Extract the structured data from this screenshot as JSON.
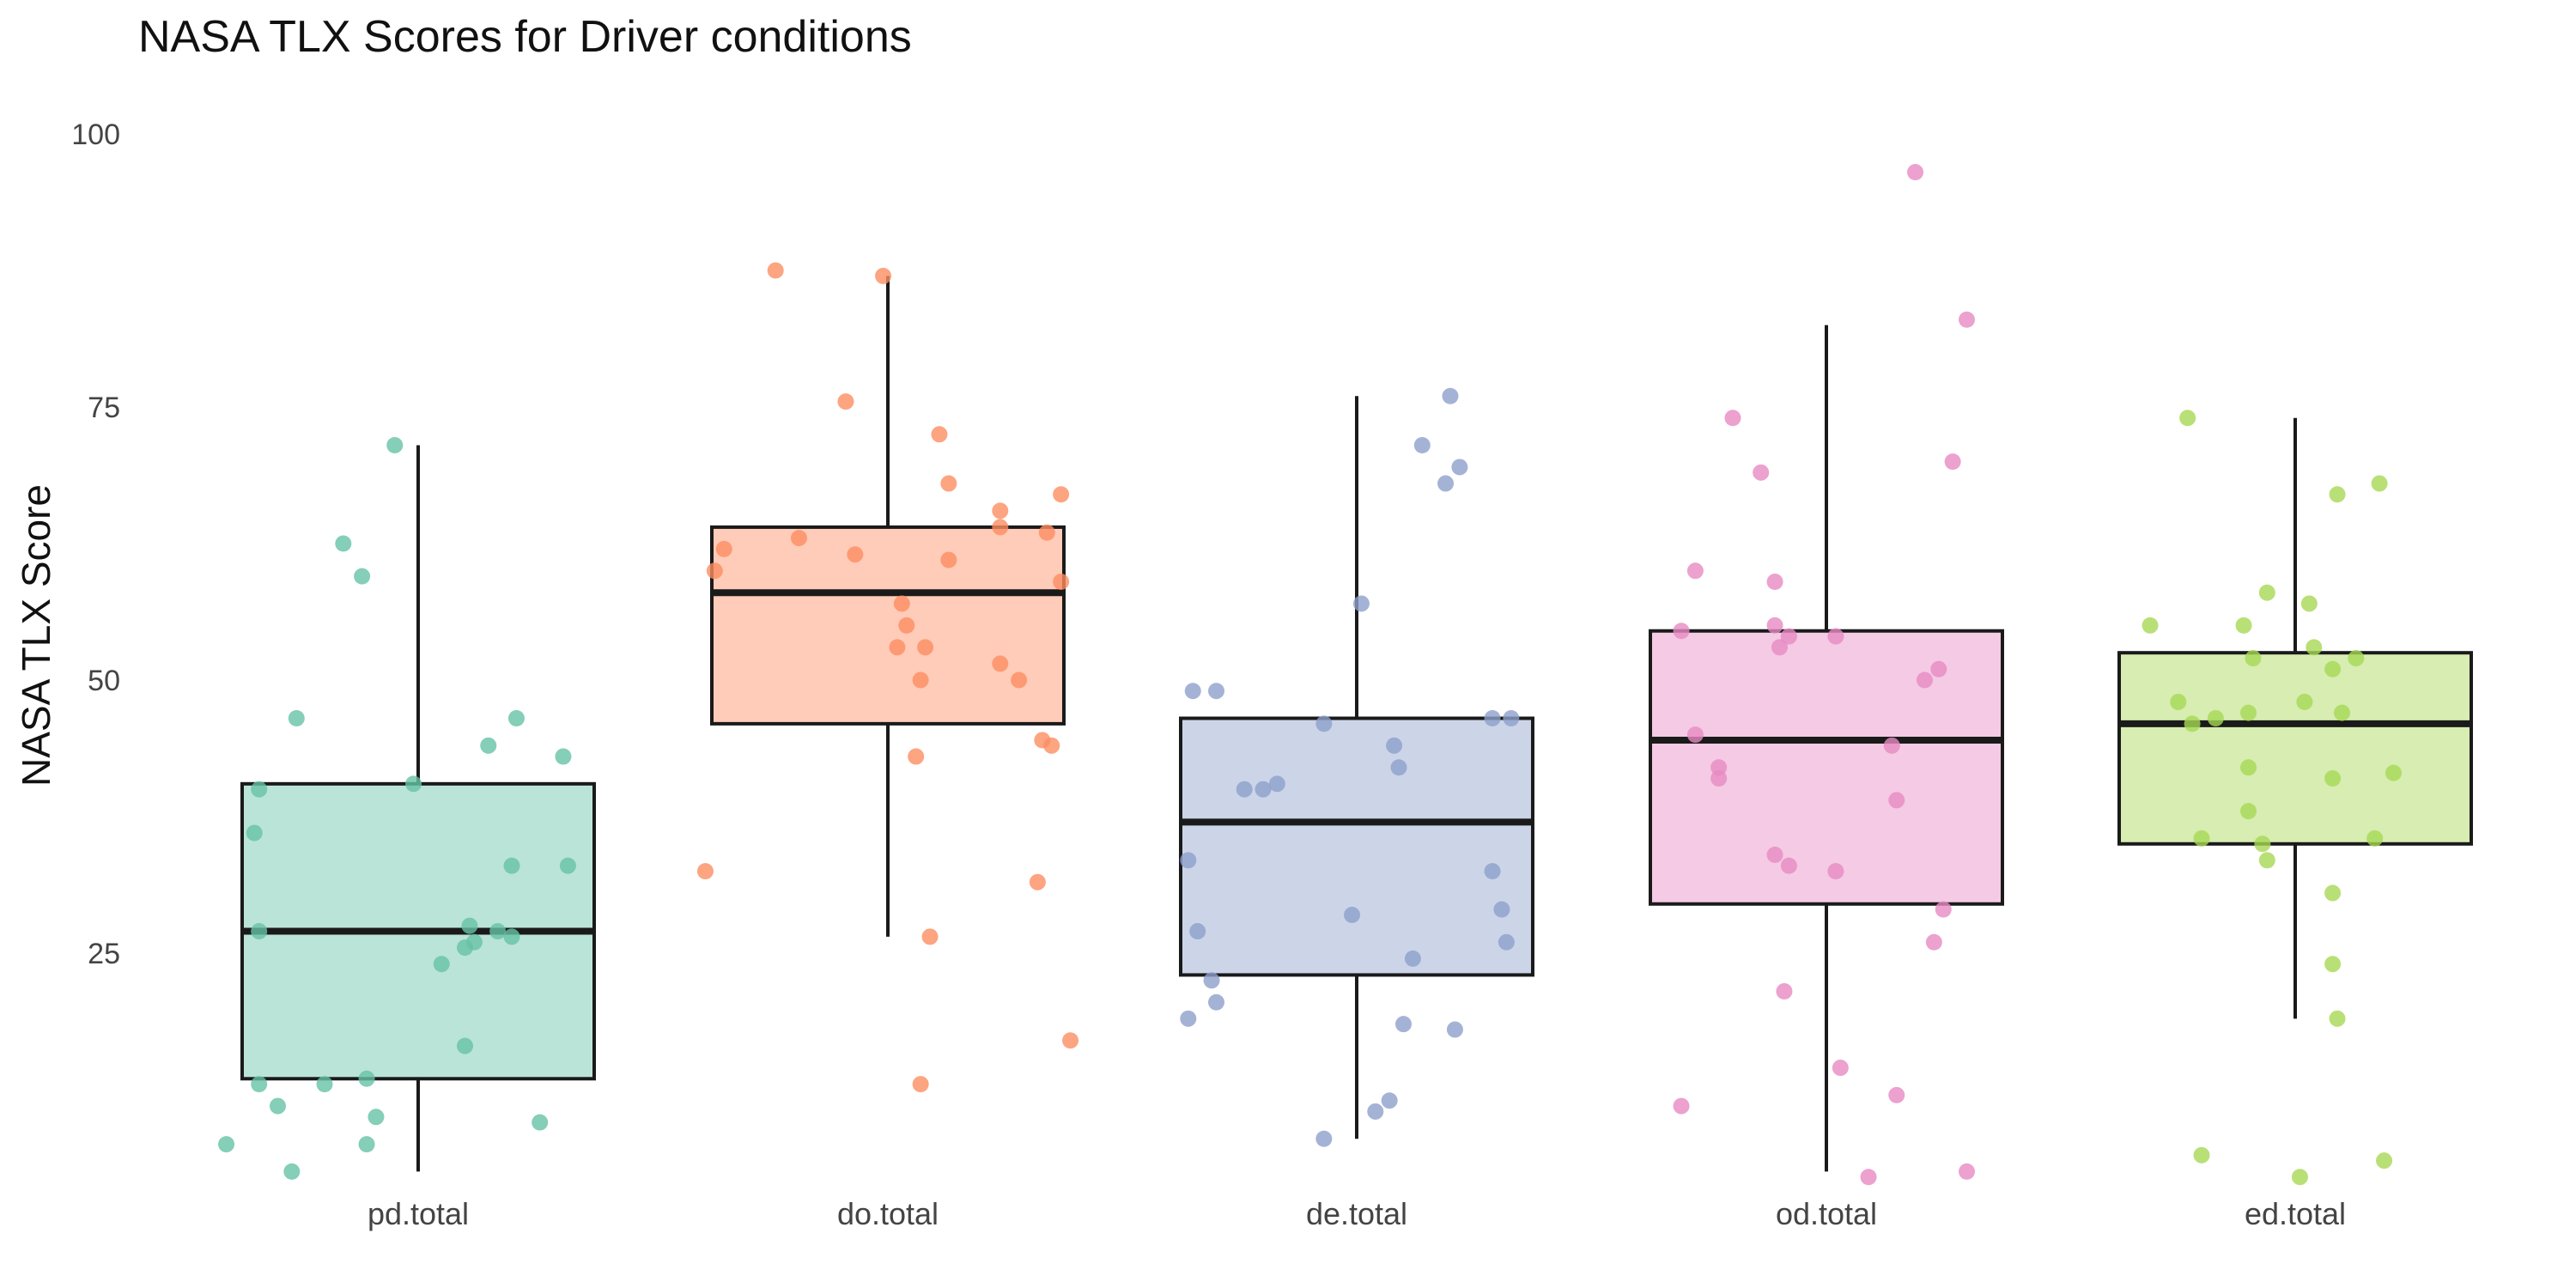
{
  "chart_data": {
    "type": "box",
    "title": "NASA TLX Scores for Driver conditions",
    "xlabel": "",
    "ylabel": "NASA TLX Score",
    "ylim": [
      1,
      100
    ],
    "yticks": [
      25,
      50,
      75,
      100
    ],
    "grid": false,
    "legend": "none",
    "categories": [
      "pd.total",
      "do.total",
      "de.total",
      "od.total",
      "ed.total"
    ],
    "colors": [
      "#66c2a5",
      "#fc8d62",
      "#8da0cb",
      "#e78ac3",
      "#a6d854"
    ],
    "series": [
      {
        "category": "pd.total",
        "box": {
          "min": 5,
          "q1": 13.5,
          "median": 27,
          "q3": 40.5,
          "max": 71.5
        },
        "points": [
          {
            "x": -0.05,
            "y": 71.5
          },
          {
            "x": -0.16,
            "y": 62.5
          },
          {
            "x": -0.12,
            "y": 59.5
          },
          {
            "x": -0.26,
            "y": 46.5
          },
          {
            "x": 0.21,
            "y": 46.5
          },
          {
            "x": 0.15,
            "y": 44
          },
          {
            "x": 0.31,
            "y": 43
          },
          {
            "x": -0.01,
            "y": 40.5
          },
          {
            "x": -0.34,
            "y": 40
          },
          {
            "x": -0.35,
            "y": 36
          },
          {
            "x": 0.2,
            "y": 33
          },
          {
            "x": 0.32,
            "y": 33
          },
          {
            "x": -0.34,
            "y": 27
          },
          {
            "x": 0.11,
            "y": 27.5
          },
          {
            "x": 0.17,
            "y": 27
          },
          {
            "x": 0.2,
            "y": 26.5
          },
          {
            "x": 0.12,
            "y": 26
          },
          {
            "x": 0.1,
            "y": 25.5
          },
          {
            "x": 0.05,
            "y": 24
          },
          {
            "x": 0.1,
            "y": 16.5
          },
          {
            "x": -0.34,
            "y": 13
          },
          {
            "x": -0.2,
            "y": 13
          },
          {
            "x": -0.11,
            "y": 13.5
          },
          {
            "x": -0.3,
            "y": 11
          },
          {
            "x": -0.09,
            "y": 10
          },
          {
            "x": 0.26,
            "y": 9.5
          },
          {
            "x": -0.41,
            "y": 7.5
          },
          {
            "x": -0.11,
            "y": 7.5
          },
          {
            "x": -0.27,
            "y": 5
          }
        ]
      },
      {
        "category": "do.total",
        "box": {
          "min": 26.5,
          "q1": 46,
          "median": 58,
          "q3": 64,
          "max": 87
        },
        "points": [
          {
            "x": -0.24,
            "y": 87.5
          },
          {
            "x": -0.01,
            "y": 87
          },
          {
            "x": -0.09,
            "y": 75.5
          },
          {
            "x": 0.11,
            "y": 72.5
          },
          {
            "x": 0.13,
            "y": 68
          },
          {
            "x": 0.37,
            "y": 67
          },
          {
            "x": 0.24,
            "y": 65.5
          },
          {
            "x": 0.24,
            "y": 64
          },
          {
            "x": 0.34,
            "y": 63.5
          },
          {
            "x": -0.19,
            "y": 63
          },
          {
            "x": -0.35,
            "y": 62
          },
          {
            "x": -0.07,
            "y": 61.5
          },
          {
            "x": 0.13,
            "y": 61
          },
          {
            "x": -0.37,
            "y": 60
          },
          {
            "x": 0.37,
            "y": 59
          },
          {
            "x": 0.03,
            "y": 57
          },
          {
            "x": 0.04,
            "y": 55
          },
          {
            "x": 0.02,
            "y": 53
          },
          {
            "x": 0.08,
            "y": 53
          },
          {
            "x": 0.24,
            "y": 51.5
          },
          {
            "x": 0.07,
            "y": 50
          },
          {
            "x": 0.28,
            "y": 50
          },
          {
            "x": 0.33,
            "y": 44.5
          },
          {
            "x": 0.35,
            "y": 44
          },
          {
            "x": 0.06,
            "y": 43
          },
          {
            "x": -0.39,
            "y": 32.5
          },
          {
            "x": 0.32,
            "y": 31.5
          },
          {
            "x": 0.09,
            "y": 26.5
          },
          {
            "x": 0.39,
            "y": 17
          },
          {
            "x": 0.07,
            "y": 13
          }
        ]
      },
      {
        "category": "de.total",
        "box": {
          "min": 8,
          "q1": 23,
          "median": 37,
          "q3": 46.5,
          "max": 76
        },
        "points": [
          {
            "x": 0.2,
            "y": 76
          },
          {
            "x": 0.14,
            "y": 71.5
          },
          {
            "x": 0.22,
            "y": 69.5
          },
          {
            "x": 0.19,
            "y": 68
          },
          {
            "x": 0.01,
            "y": 57
          },
          {
            "x": -0.35,
            "y": 49
          },
          {
            "x": -0.3,
            "y": 49
          },
          {
            "x": 0.29,
            "y": 46.5
          },
          {
            "x": 0.33,
            "y": 46.5
          },
          {
            "x": -0.07,
            "y": 46
          },
          {
            "x": 0.08,
            "y": 44
          },
          {
            "x": 0.09,
            "y": 42
          },
          {
            "x": -0.24,
            "y": 40
          },
          {
            "x": -0.2,
            "y": 40
          },
          {
            "x": -0.17,
            "y": 40.5
          },
          {
            "x": -0.36,
            "y": 33.5
          },
          {
            "x": 0.29,
            "y": 32.5
          },
          {
            "x": 0.31,
            "y": 29
          },
          {
            "x": -0.01,
            "y": 28.5
          },
          {
            "x": -0.34,
            "y": 27
          },
          {
            "x": 0.32,
            "y": 26
          },
          {
            "x": 0.12,
            "y": 24.5
          },
          {
            "x": -0.31,
            "y": 22.5
          },
          {
            "x": -0.3,
            "y": 20.5
          },
          {
            "x": -0.36,
            "y": 19
          },
          {
            "x": 0.1,
            "y": 18.5
          },
          {
            "x": 0.21,
            "y": 18
          },
          {
            "x": 0.07,
            "y": 11.5
          },
          {
            "x": 0.04,
            "y": 10.5
          },
          {
            "x": -0.07,
            "y": 8
          }
        ]
      },
      {
        "category": "od.total",
        "box": {
          "min": 5,
          "q1": 29.5,
          "median": 44.5,
          "q3": 54.5,
          "max": 82.5
        },
        "points": [
          {
            "x": 0.19,
            "y": 96.5
          },
          {
            "x": 0.3,
            "y": 83
          },
          {
            "x": -0.2,
            "y": 74
          },
          {
            "x": -0.14,
            "y": 69
          },
          {
            "x": 0.27,
            "y": 70
          },
          {
            "x": -0.28,
            "y": 60
          },
          {
            "x": -0.11,
            "y": 59
          },
          {
            "x": -0.31,
            "y": 54.5
          },
          {
            "x": -0.11,
            "y": 55
          },
          {
            "x": -0.08,
            "y": 54
          },
          {
            "x": 0.02,
            "y": 54
          },
          {
            "x": -0.1,
            "y": 53
          },
          {
            "x": 0.24,
            "y": 51
          },
          {
            "x": 0.21,
            "y": 50
          },
          {
            "x": -0.28,
            "y": 45
          },
          {
            "x": 0.14,
            "y": 44
          },
          {
            "x": -0.23,
            "y": 42
          },
          {
            "x": -0.23,
            "y": 41
          },
          {
            "x": 0.15,
            "y": 39
          },
          {
            "x": -0.11,
            "y": 34
          },
          {
            "x": -0.08,
            "y": 33
          },
          {
            "x": 0.02,
            "y": 32.5
          },
          {
            "x": 0.25,
            "y": 29
          },
          {
            "x": 0.23,
            "y": 26
          },
          {
            "x": -0.09,
            "y": 21.5
          },
          {
            "x": 0.03,
            "y": 14.5
          },
          {
            "x": 0.15,
            "y": 12
          },
          {
            "x": -0.31,
            "y": 11
          },
          {
            "x": 0.09,
            "y": 4.5
          },
          {
            "x": 0.3,
            "y": 5
          }
        ]
      },
      {
        "category": "ed.total",
        "box": {
          "min": 19,
          "q1": 35,
          "median": 46,
          "q3": 52.5,
          "max": 74
        },
        "points": [
          {
            "x": -0.23,
            "y": 74
          },
          {
            "x": 0.18,
            "y": 68
          },
          {
            "x": 0.09,
            "y": 67
          },
          {
            "x": -0.06,
            "y": 58
          },
          {
            "x": -0.11,
            "y": 55
          },
          {
            "x": -0.31,
            "y": 55
          },
          {
            "x": -0.09,
            "y": 52
          },
          {
            "x": 0.03,
            "y": 57
          },
          {
            "x": 0.04,
            "y": 53
          },
          {
            "x": 0.13,
            "y": 52
          },
          {
            "x": 0.08,
            "y": 51
          },
          {
            "x": -0.25,
            "y": 48
          },
          {
            "x": 0.02,
            "y": 48
          },
          {
            "x": -0.1,
            "y": 47
          },
          {
            "x": -0.17,
            "y": 46.5
          },
          {
            "x": -0.22,
            "y": 46
          },
          {
            "x": 0.1,
            "y": 47
          },
          {
            "x": 0.21,
            "y": 41.5
          },
          {
            "x": 0.08,
            "y": 41
          },
          {
            "x": -0.1,
            "y": 42
          },
          {
            "x": -0.1,
            "y": 38
          },
          {
            "x": -0.2,
            "y": 35.5
          },
          {
            "x": 0.17,
            "y": 35.5
          },
          {
            "x": -0.07,
            "y": 35
          },
          {
            "x": -0.06,
            "y": 33.5
          },
          {
            "x": 0.08,
            "y": 30.5
          },
          {
            "x": 0.08,
            "y": 24
          },
          {
            "x": 0.09,
            "y": 19
          },
          {
            "x": -0.2,
            "y": 6.5
          },
          {
            "x": 0.19,
            "y": 6
          },
          {
            "x": 0.01,
            "y": 4.5
          }
        ]
      }
    ]
  }
}
